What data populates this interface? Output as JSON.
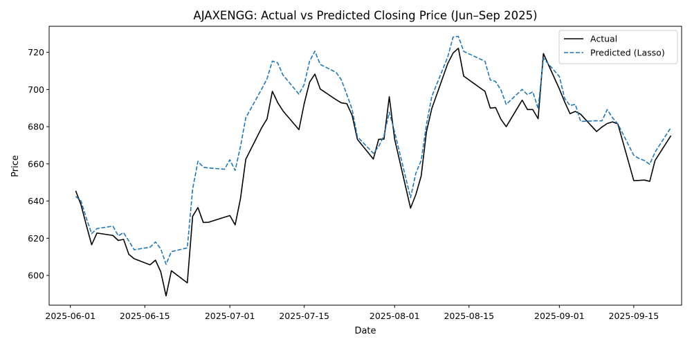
{
  "chart_data": {
    "type": "line",
    "title": "AJAXENGG: Actual vs Predicted Closing Price (Jun–Sep 2025)",
    "xlabel": "Date",
    "ylabel": "Price",
    "ylim": [
      584,
      734
    ],
    "yticks": [
      600,
      620,
      640,
      660,
      680,
      700,
      720
    ],
    "xticks": [
      "2025-06-01",
      "2025-06-15",
      "2025-07-01",
      "2025-07-15",
      "2025-08-01",
      "2025-08-15",
      "2025-09-01",
      "2025-09-15"
    ],
    "xlim": [
      "2025-05-28",
      "2025-09-24"
    ],
    "grid": false,
    "legend_position": "top-right",
    "series": [
      {
        "name": "Actual",
        "color": "#000000",
        "style": "solid",
        "points": [
          [
            "2025-06-02",
            645.5
          ],
          [
            "2025-06-03",
            638
          ],
          [
            "2025-06-04",
            627
          ],
          [
            "2025-06-05",
            616.5
          ],
          [
            "2025-06-06",
            622.8
          ],
          [
            "2025-06-09",
            621.5
          ],
          [
            "2025-06-10",
            618.8
          ],
          [
            "2025-06-11",
            619.4
          ],
          [
            "2025-06-12",
            611.3
          ],
          [
            "2025-06-13",
            609
          ],
          [
            "2025-06-16",
            605.7
          ],
          [
            "2025-06-17",
            608.2
          ],
          [
            "2025-06-18",
            602
          ],
          [
            "2025-06-19",
            589
          ],
          [
            "2025-06-20",
            602.5
          ],
          [
            "2025-06-23",
            596
          ],
          [
            "2025-06-24",
            631.8
          ],
          [
            "2025-06-25",
            636.5
          ],
          [
            "2025-06-26",
            628.5
          ],
          [
            "2025-06-27",
            628.6
          ],
          [
            "2025-06-30",
            631.3
          ],
          [
            "2025-07-01",
            632.2
          ],
          [
            "2025-07-02",
            627.2
          ],
          [
            "2025-07-03",
            641.3
          ],
          [
            "2025-07-04",
            662.5
          ],
          [
            "2025-07-07",
            679.5
          ],
          [
            "2025-07-08",
            684.2
          ],
          [
            "2025-07-09",
            699
          ],
          [
            "2025-07-10",
            693
          ],
          [
            "2025-07-11",
            688.5
          ],
          [
            "2025-07-14",
            678.4
          ],
          [
            "2025-07-15",
            692.5
          ],
          [
            "2025-07-16",
            703.9
          ],
          [
            "2025-07-17",
            708.3
          ],
          [
            "2025-07-18",
            700.3
          ],
          [
            "2025-07-21",
            694.5
          ],
          [
            "2025-07-22",
            692.8
          ],
          [
            "2025-07-23",
            692.4
          ],
          [
            "2025-07-24",
            686.2
          ],
          [
            "2025-07-25",
            673.2
          ],
          [
            "2025-07-28",
            662.6
          ],
          [
            "2025-07-29",
            673.2
          ],
          [
            "2025-07-30",
            673.3
          ],
          [
            "2025-07-31",
            696.1
          ],
          [
            "2025-08-01",
            673.4
          ],
          [
            "2025-08-04",
            636.2
          ],
          [
            "2025-08-05",
            643.5
          ],
          [
            "2025-08-06",
            653.5
          ],
          [
            "2025-08-07",
            677.4
          ],
          [
            "2025-08-08",
            689.8
          ],
          [
            "2025-08-11",
            714
          ],
          [
            "2025-08-12",
            719.6
          ],
          [
            "2025-08-13",
            722.2
          ],
          [
            "2025-08-14",
            707.2
          ],
          [
            "2025-08-18",
            699
          ],
          [
            "2025-08-19",
            690
          ],
          [
            "2025-08-20",
            690.3
          ],
          [
            "2025-08-21",
            684
          ],
          [
            "2025-08-22",
            680
          ],
          [
            "2025-08-25",
            694.3
          ],
          [
            "2025-08-26",
            689.2
          ],
          [
            "2025-08-27",
            689.2
          ],
          [
            "2025-08-28",
            684.3
          ],
          [
            "2025-08-29",
            719.3
          ],
          [
            "2025-09-01",
            700.3
          ],
          [
            "2025-09-02",
            693.3
          ],
          [
            "2025-09-03",
            687
          ],
          [
            "2025-09-04",
            688.2
          ],
          [
            "2025-09-05",
            686.7
          ],
          [
            "2025-09-08",
            677.4
          ],
          [
            "2025-09-09",
            679.8
          ],
          [
            "2025-09-10",
            681.7
          ],
          [
            "2025-09-11",
            682.6
          ],
          [
            "2025-09-12",
            681.5
          ],
          [
            "2025-09-15",
            651
          ],
          [
            "2025-09-16",
            651.1
          ],
          [
            "2025-09-17",
            651.3
          ],
          [
            "2025-09-18",
            650.6
          ],
          [
            "2025-09-19",
            661.8
          ],
          [
            "2025-09-22",
            675.2
          ]
        ]
      },
      {
        "name": "Predicted (Lasso)",
        "color": "#1f77b4",
        "style": "dashed",
        "points": [
          [
            "2025-06-02",
            642.5
          ],
          [
            "2025-06-03",
            640
          ],
          [
            "2025-06-04",
            630.8
          ],
          [
            "2025-06-05",
            622.5
          ],
          [
            "2025-06-06",
            625.2
          ],
          [
            "2025-06-09",
            626.5
          ],
          [
            "2025-06-10",
            621.3
          ],
          [
            "2025-06-11",
            623
          ],
          [
            "2025-06-12",
            618.5
          ],
          [
            "2025-06-13",
            613.8
          ],
          [
            "2025-06-16",
            615.2
          ],
          [
            "2025-06-17",
            618
          ],
          [
            "2025-06-18",
            614.3
          ],
          [
            "2025-06-19",
            606
          ],
          [
            "2025-06-20",
            612.8
          ],
          [
            "2025-06-23",
            614.8
          ],
          [
            "2025-06-24",
            646.5
          ],
          [
            "2025-06-25",
            661.4
          ],
          [
            "2025-06-26",
            658.2
          ],
          [
            "2025-06-27",
            657.8
          ],
          [
            "2025-06-30",
            657.1
          ],
          [
            "2025-07-01",
            662.2
          ],
          [
            "2025-07-02",
            656.5
          ],
          [
            "2025-07-03",
            669.3
          ],
          [
            "2025-07-04",
            684.8
          ],
          [
            "2025-07-07",
            700.3
          ],
          [
            "2025-07-08",
            705.8
          ],
          [
            "2025-07-09",
            715.3
          ],
          [
            "2025-07-10",
            714.3
          ],
          [
            "2025-07-11",
            707.8
          ],
          [
            "2025-07-14",
            697.5
          ],
          [
            "2025-07-15",
            702.8
          ],
          [
            "2025-07-16",
            715.2
          ],
          [
            "2025-07-17",
            720.6
          ],
          [
            "2025-07-18",
            713.5
          ],
          [
            "2025-07-21",
            709.2
          ],
          [
            "2025-07-22",
            705.1
          ],
          [
            "2025-07-23",
            697.4
          ],
          [
            "2025-07-24",
            689.4
          ],
          [
            "2025-07-25",
            674.6
          ],
          [
            "2025-07-28",
            665.7
          ],
          [
            "2025-07-29",
            669.3
          ],
          [
            "2025-07-30",
            675.2
          ],
          [
            "2025-07-31",
            687.8
          ],
          [
            "2025-08-01",
            677.2
          ],
          [
            "2025-08-04",
            641.8
          ],
          [
            "2025-08-05",
            655
          ],
          [
            "2025-08-06",
            661.8
          ],
          [
            "2025-08-07",
            681.3
          ],
          [
            "2025-08-08",
            696.3
          ],
          [
            "2025-08-11",
            717.5
          ],
          [
            "2025-08-12",
            728.2
          ],
          [
            "2025-08-13",
            728.6
          ],
          [
            "2025-08-14",
            720.5
          ],
          [
            "2025-08-18",
            715.2
          ],
          [
            "2025-08-19",
            705.1
          ],
          [
            "2025-08-20",
            704.3
          ],
          [
            "2025-08-21",
            699.8
          ],
          [
            "2025-08-22",
            692
          ],
          [
            "2025-08-25",
            700.1
          ],
          [
            "2025-08-26",
            697.2
          ],
          [
            "2025-08-27",
            698.8
          ],
          [
            "2025-08-28",
            689.7
          ],
          [
            "2025-08-29",
            716.8
          ],
          [
            "2025-09-01",
            707
          ],
          [
            "2025-09-02",
            695.2
          ],
          [
            "2025-09-03",
            691.4
          ],
          [
            "2025-09-04",
            692
          ],
          [
            "2025-09-05",
            682.8
          ],
          [
            "2025-09-08",
            683.2
          ],
          [
            "2025-09-09",
            683.1
          ],
          [
            "2025-09-10",
            689.2
          ],
          [
            "2025-09-11",
            684.8
          ],
          [
            "2025-09-12",
            681.5
          ],
          [
            "2025-09-15",
            664.6
          ],
          [
            "2025-09-16",
            662.9
          ],
          [
            "2025-09-17",
            661.8
          ],
          [
            "2025-09-18",
            659.8
          ],
          [
            "2025-09-19",
            666.3
          ],
          [
            "2025-09-22",
            679.6
          ]
        ]
      }
    ]
  }
}
